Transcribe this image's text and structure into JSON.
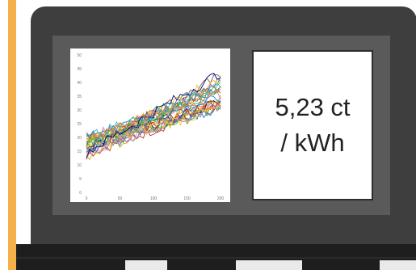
{
  "price": {
    "line1": "5,23 ct",
    "line2": "/ kWh"
  },
  "colors": {
    "accent": "#f5b04a",
    "laptop_body": "#3e3e3e",
    "screen": "#5a5a5a",
    "series_palette": [
      "#1f77b4",
      "#ff7f0e",
      "#2ca02c",
      "#d62728",
      "#9467bd",
      "#8c564b",
      "#e377c2",
      "#7f7f7f",
      "#bcbd22",
      "#17becf",
      "#f5c518",
      "#3cb44b",
      "#a9a9a9",
      "#000080"
    ]
  },
  "chart_data": {
    "type": "line",
    "x_ticks": [
      "0",
      "50",
      "100",
      "150",
      "200"
    ],
    "y_ticks": [
      "0",
      "5",
      "10",
      "15",
      "20",
      "25",
      "30",
      "35",
      "40",
      "45",
      "50"
    ],
    "xlim": [
      0,
      200
    ],
    "ylim": [
      0,
      50
    ],
    "grid": false,
    "legend": "none",
    "series_count": 30,
    "start_range": [
      13,
      20
    ],
    "end_range": [
      29,
      45
    ]
  }
}
